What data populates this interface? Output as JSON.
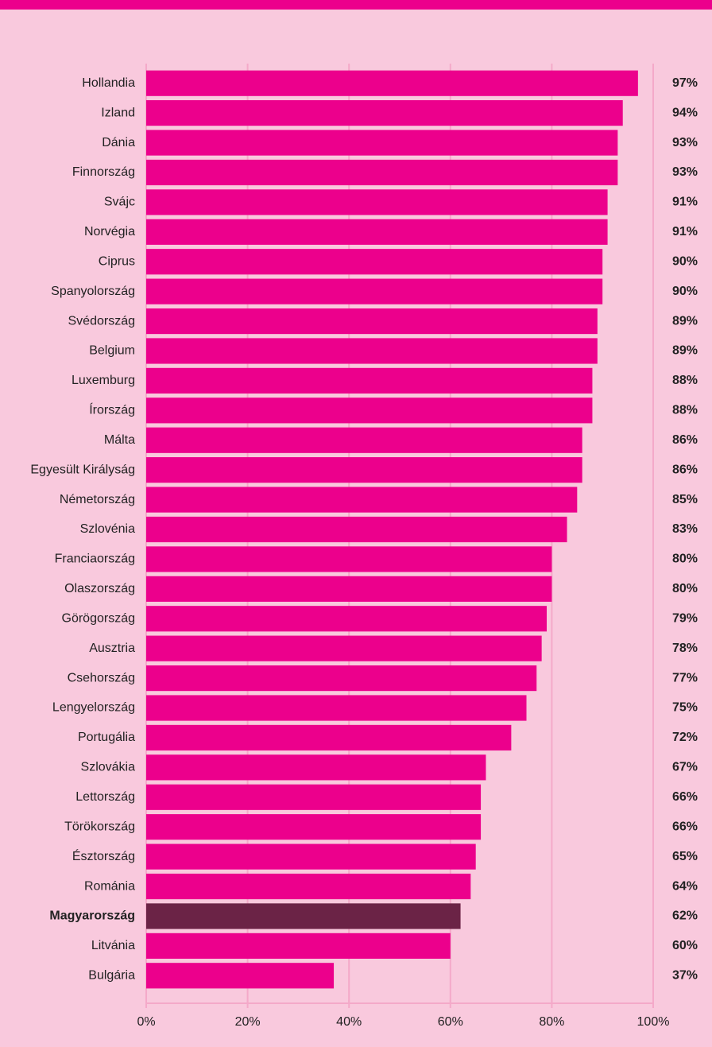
{
  "chart_data": {
    "type": "bar",
    "orientation": "horizontal",
    "categories": [
      "Hollandia",
      "Izland",
      "Dánia",
      "Finnország",
      "Svájc",
      "Norvégia",
      "Ciprus",
      "Spanyolország",
      "Svédország",
      "Belgium",
      "Luxemburg",
      "Írország",
      "Málta",
      "Egyesült Királyság",
      "Németország",
      "Szlovénia",
      "Franciaország",
      "Olaszország",
      "Görögország",
      "Ausztria",
      "Csehország",
      "Lengyelország",
      "Portugália",
      "Szlovákia",
      "Lettország",
      "Törökország",
      "Észtország",
      "Románia",
      "Magyarország",
      "Litvánia",
      "Bulgária"
    ],
    "values": [
      97,
      94,
      93,
      93,
      91,
      91,
      90,
      90,
      89,
      89,
      88,
      88,
      86,
      86,
      85,
      83,
      80,
      80,
      79,
      78,
      77,
      75,
      72,
      67,
      66,
      66,
      65,
      64,
      62,
      60,
      37
    ],
    "value_labels": [
      "97%",
      "94%",
      "93%",
      "93%",
      "91%",
      "91%",
      "90%",
      "90%",
      "89%",
      "89%",
      "88%",
      "88%",
      "86%",
      "86%",
      "85%",
      "83%",
      "80%",
      "80%",
      "79%",
      "78%",
      "77%",
      "75%",
      "72%",
      "67%",
      "66%",
      "66%",
      "65%",
      "64%",
      "62%",
      "60%",
      "37%"
    ],
    "color": "#ec008c",
    "colors": [
      "#ec008c",
      "#ec008c",
      "#ec008c",
      "#ec008c",
      "#ec008c",
      "#ec008c",
      "#ec008c",
      "#ec008c",
      "#ec008c",
      "#ec008c",
      "#ec008c",
      "#ec008c",
      "#ec008c",
      "#ec008c",
      "#ec008c",
      "#ec008c",
      "#ec008c",
      "#ec008c",
      "#ec008c",
      "#ec008c",
      "#ec008c",
      "#ec008c",
      "#ec008c",
      "#ec008c",
      "#ec008c",
      "#ec008c",
      "#ec008c",
      "#ec008c",
      "#6b2346",
      "#ec008c",
      "#ec008c"
    ],
    "xlim": [
      0,
      100
    ],
    "xticks": [
      {
        "value": 0,
        "label": "0%"
      },
      {
        "value": 20,
        "label": "20%"
      },
      {
        "value": 40,
        "label": "40%"
      },
      {
        "value": 60,
        "label": "60%"
      },
      {
        "value": 80,
        "label": "80%"
      },
      {
        "value": 100,
        "label": "100%"
      }
    ],
    "grid": true
  }
}
